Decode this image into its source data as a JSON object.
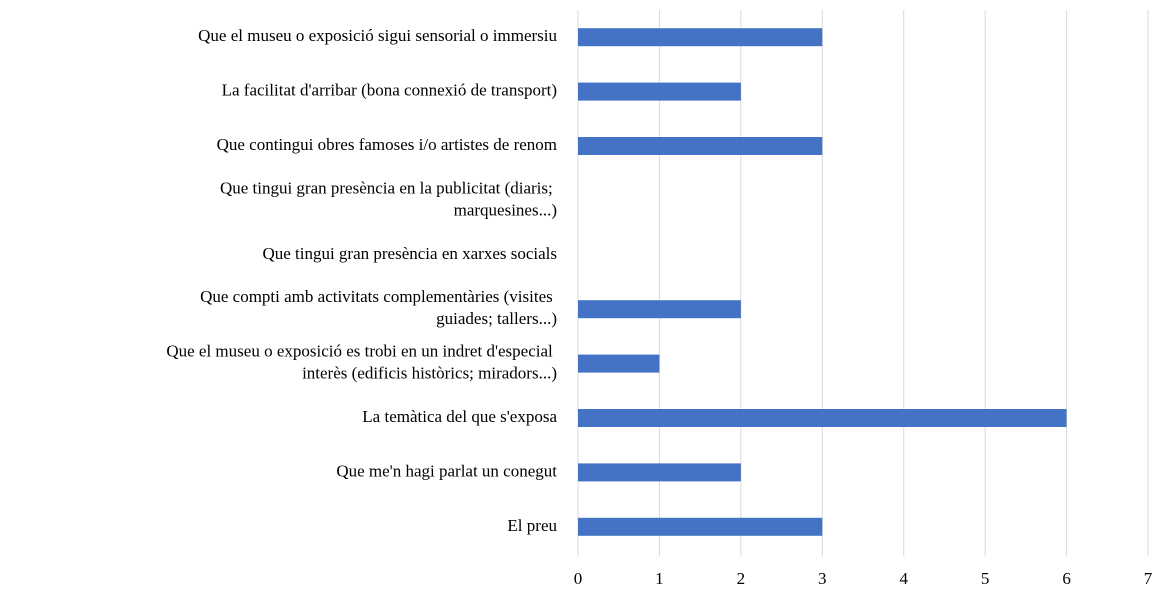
{
  "chart_data": {
    "type": "bar",
    "orientation": "horizontal",
    "categories": [
      "Que el museu o exposició sigui sensorial o immersiu",
      "La facilitat d'arribar (bona connexió de transport)",
      "Que contingui obres famoses i/o artistes de renom",
      "Que tingui gran presència en la publicitat (diaris; marquesines...)",
      "Que tingui gran presència en xarxes socials",
      "Que compti amb activitats complementàries (visites guiades; tallers...)",
      "Que el museu o exposició es trobi en un indret d'especial interès (edificis històrics; miradors...)",
      "La temàtica del que s'exposa",
      "Que me'n hagi parlat un conegut",
      "El preu"
    ],
    "values": [
      3,
      2,
      3,
      0,
      0,
      2,
      1,
      6,
      2,
      3
    ],
    "color": "#4472c4",
    "xlim": [
      0,
      7
    ],
    "xticks": [
      0,
      1,
      2,
      3,
      4,
      5,
      6,
      7
    ],
    "grid": true
  }
}
